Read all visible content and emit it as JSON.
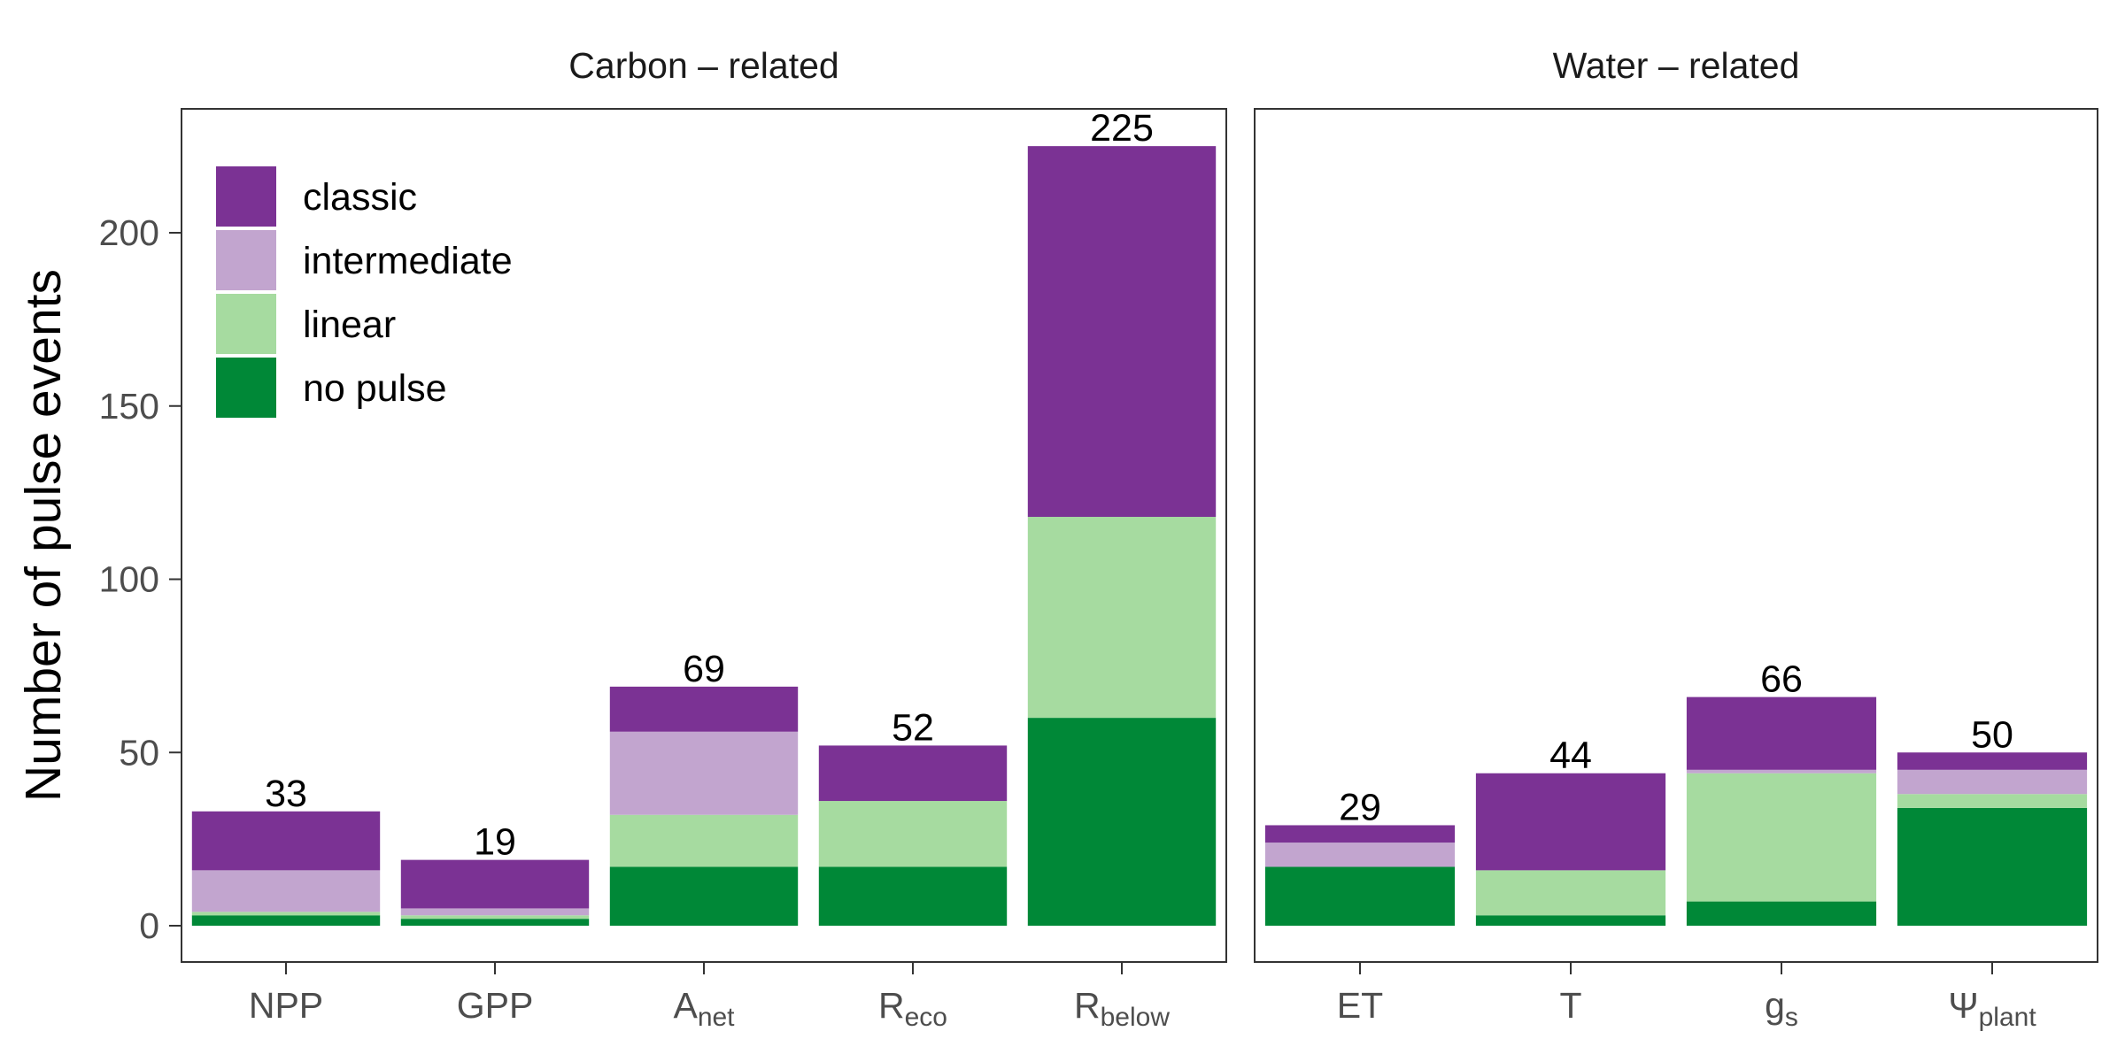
{
  "chart_data": {
    "type": "bar",
    "stacked": true,
    "ylabel": "Number of pulse events",
    "ylim": [
      0,
      235
    ],
    "yticks": [
      0,
      50,
      100,
      150,
      200
    ],
    "grid": false,
    "legend": {
      "position": "top-left",
      "entries": [
        "classic",
        "intermediate",
        "linear",
        "no pulse"
      ]
    },
    "colors": {
      "classic": "#7B3294",
      "intermediate": "#C2A5CF",
      "linear": "#A6DBA0",
      "no pulse": "#008837"
    },
    "panels": [
      {
        "title": "Carbon – related",
        "categories": [
          {
            "base": "NPP",
            "sub": ""
          },
          {
            "base": "GPP",
            "sub": ""
          },
          {
            "base": "A",
            "sub": "net"
          },
          {
            "base": "R",
            "sub": "eco"
          },
          {
            "base": "R",
            "sub": "below"
          }
        ],
        "series": [
          {
            "name": "no pulse",
            "values": [
              3,
              2,
              17,
              17,
              60
            ]
          },
          {
            "name": "linear",
            "values": [
              1,
              1,
              15,
              19,
              58
            ]
          },
          {
            "name": "intermediate",
            "values": [
              12,
              2,
              24,
              0,
              0
            ]
          },
          {
            "name": "classic",
            "values": [
              17,
              14,
              13,
              16,
              107
            ]
          }
        ],
        "totals": [
          33,
          19,
          69,
          52,
          225
        ]
      },
      {
        "title": "Water – related",
        "categories": [
          {
            "base": "ET",
            "sub": ""
          },
          {
            "base": "T",
            "sub": ""
          },
          {
            "base": "g",
            "sub": "s"
          },
          {
            "base": "Ψ",
            "sub": "plant"
          }
        ],
        "series": [
          {
            "name": "no pulse",
            "values": [
              17,
              3,
              7,
              34
            ]
          },
          {
            "name": "linear",
            "values": [
              0,
              13,
              37,
              4
            ]
          },
          {
            "name": "intermediate",
            "values": [
              7,
              0,
              1,
              7
            ]
          },
          {
            "name": "classic",
            "values": [
              5,
              28,
              21,
              5
            ]
          }
        ],
        "totals": [
          29,
          44,
          66,
          50
        ]
      }
    ]
  }
}
